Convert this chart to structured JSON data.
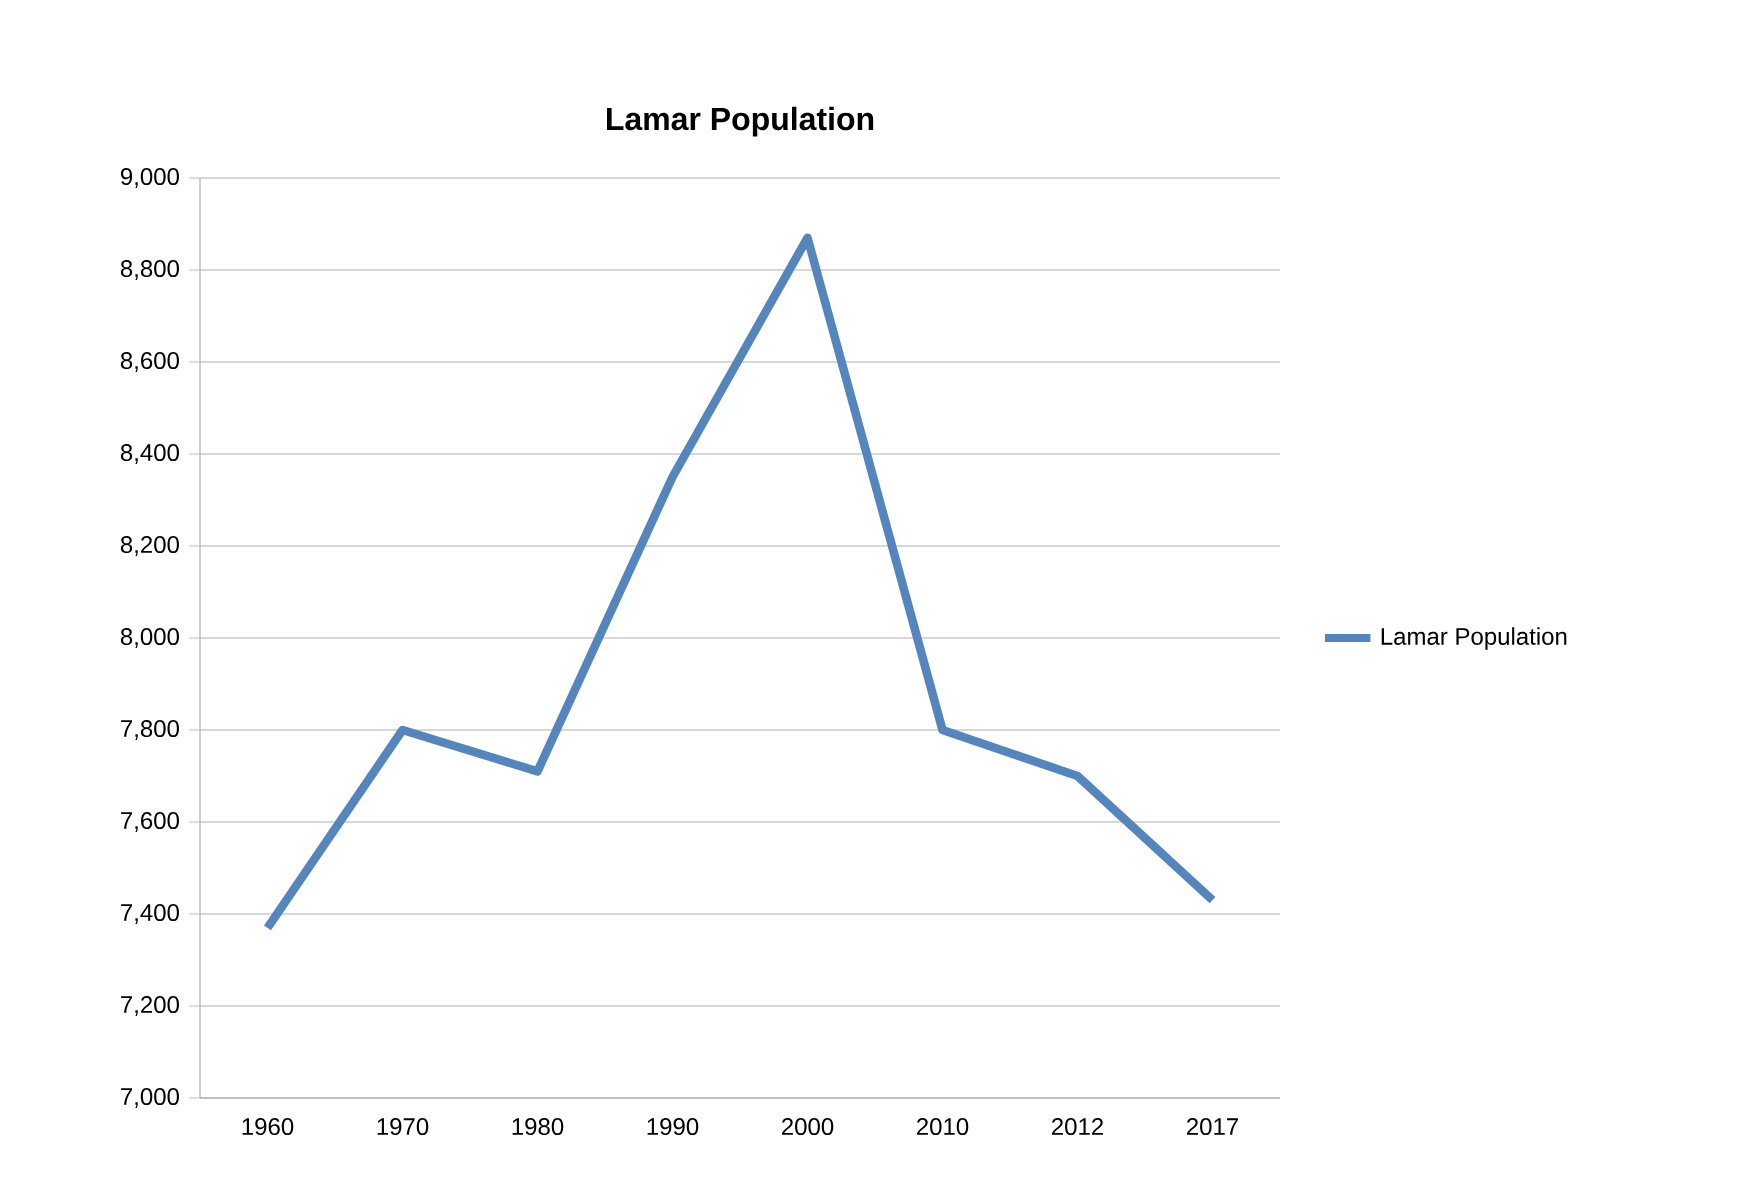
{
  "chart_data": {
    "type": "line",
    "title": "Lamar Population",
    "categories": [
      "1960",
      "1970",
      "1980",
      "1990",
      "2000",
      "2010",
      "2012",
      "2017"
    ],
    "series": [
      {
        "name": "Lamar Population",
        "color": "#5585bd",
        "values": [
          7370,
          7800,
          7710,
          8350,
          8870,
          7800,
          7700,
          7430
        ]
      }
    ],
    "ylim": [
      7000,
      9000
    ],
    "yticks": [
      {
        "value": 7000,
        "label": "7,000"
      },
      {
        "value": 7200,
        "label": "7,200"
      },
      {
        "value": 7400,
        "label": "7,400"
      },
      {
        "value": 7600,
        "label": "7,600"
      },
      {
        "value": 7800,
        "label": "7,800"
      },
      {
        "value": 8000,
        "label": "8,000"
      },
      {
        "value": 8200,
        "label": "8,200"
      },
      {
        "value": 8400,
        "label": "8,400"
      },
      {
        "value": 8600,
        "label": "8,600"
      },
      {
        "value": 8800,
        "label": "8,800"
      },
      {
        "value": 9000,
        "label": "9,000"
      }
    ],
    "grid": "y",
    "legend": "right",
    "marker": "none",
    "line_style": "solid"
  }
}
